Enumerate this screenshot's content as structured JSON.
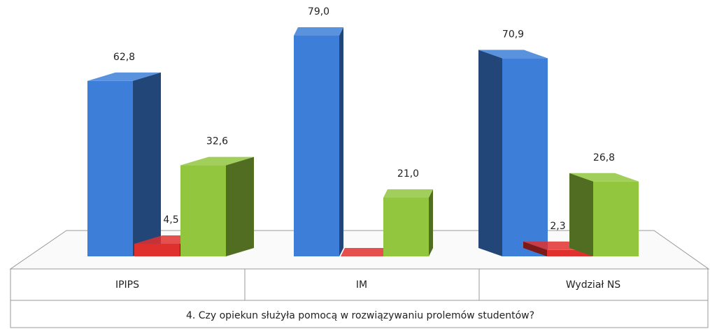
{
  "chart_data": {
    "type": "bar3d",
    "title": "4. Czy opiekun służyła pomocą w rozwiązywaniu prolemów studentów?",
    "categories": [
      "IPIPS",
      "IM",
      "Wydział NS"
    ],
    "series": [
      {
        "color": "#3d7fd8",
        "values": [
          62.8,
          79.0,
          70.9
        ],
        "value_labels": [
          "62,8",
          "79,0",
          "70,9"
        ]
      },
      {
        "color": "#e0302e",
        "values": [
          4.5,
          0,
          2.3
        ],
        "value_labels": [
          "4,5",
          null,
          "2,3"
        ]
      },
      {
        "color": "#92c63e",
        "values": [
          32.6,
          21.0,
          26.8
        ],
        "value_labels": [
          "32,6",
          "21,0",
          "26,8"
        ]
      }
    ]
  }
}
